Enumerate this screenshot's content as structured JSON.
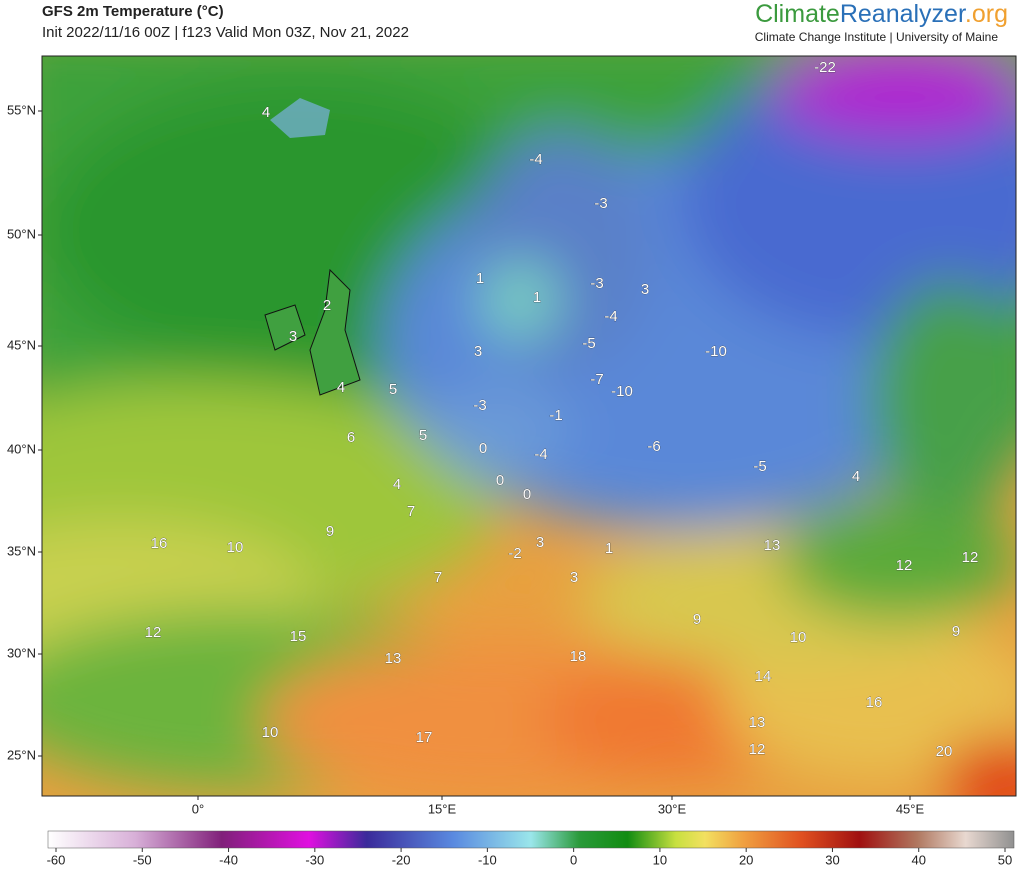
{
  "header": {
    "title": "GFS 2m Temperature (°C)",
    "subtitle": "Init 2022/11/16 00Z | f123 Valid Mon 03Z, Nov 21, 2022",
    "brand": [
      "Climate",
      "Reanalyzer",
      ".org"
    ],
    "tagline": "Climate Change Institute | University of Maine"
  },
  "map": {
    "lat_labels": [
      "55°N",
      "50°N",
      "45°N",
      "40°N",
      "35°N",
      "30°N",
      "25°N"
    ],
    "lon_labels": [
      "0°",
      "15°E",
      "30°E",
      "45°E"
    ],
    "labels": [
      -22,
      4,
      -4,
      -3,
      1,
      1,
      -3,
      3,
      2,
      -4,
      3,
      3,
      -5,
      -10,
      4,
      5,
      -7,
      -10,
      -3,
      -1,
      5,
      6,
      0,
      -4,
      -6,
      -5,
      4,
      4,
      0,
      0,
      7,
      9,
      16,
      10,
      3,
      -2,
      1,
      13,
      12,
      12,
      3,
      7,
      12,
      15,
      9,
      10,
      9,
      13,
      18,
      14,
      16,
      10,
      17,
      13,
      12,
      20
    ]
  },
  "colorbar": {
    "ticks": [
      -60,
      -50,
      -40,
      -30,
      -20,
      -10,
      0,
      10,
      20,
      30,
      40,
      50
    ]
  }
}
